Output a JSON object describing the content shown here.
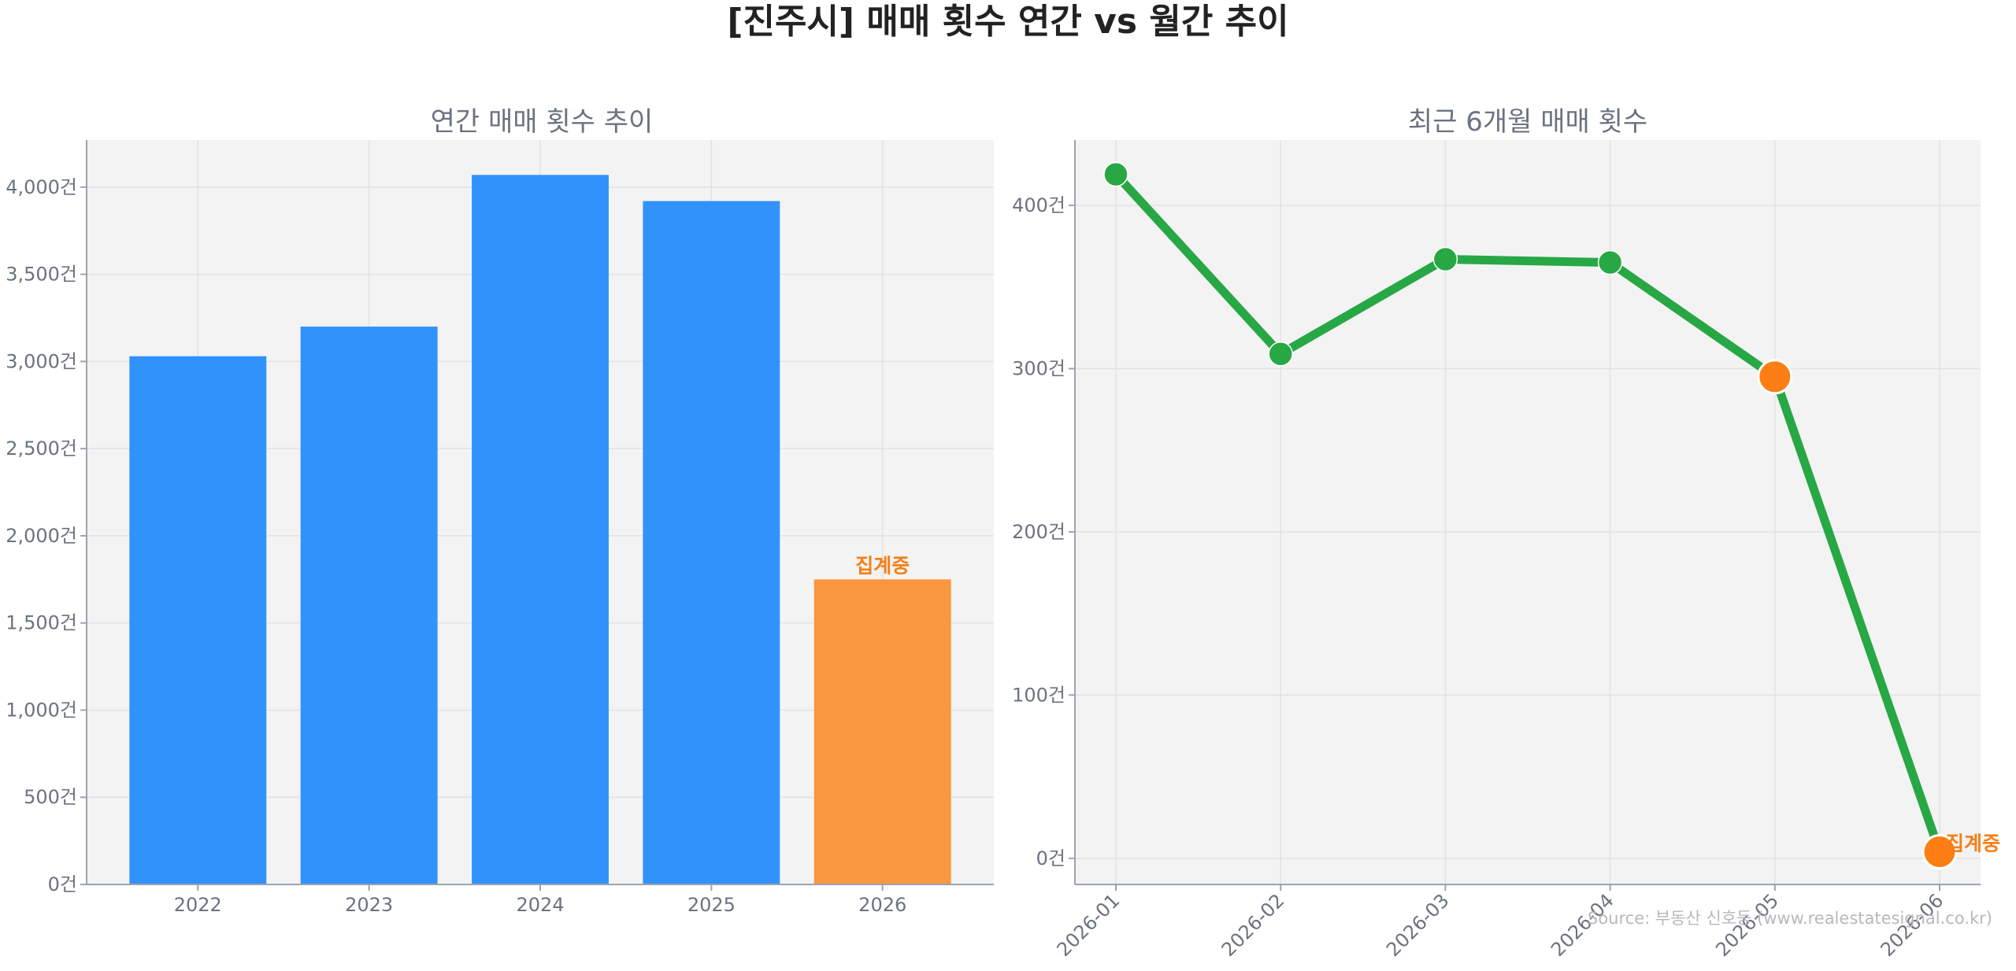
{
  "figure": {
    "title": "[진주시] 매매 횟수 연간 vs 월간 추이",
    "source": "Source: 부동산 신호등 (www.realestatesignal.co.kr)"
  },
  "colors": {
    "bar": "#3192fb",
    "bar_partial": "#f99640",
    "line": "#28a745",
    "highlight_point": "#fd7e14",
    "note_text": "#f57f17",
    "plot_bg": "#f3f3f3",
    "axis_text": "#6b7280"
  },
  "chart_data": [
    {
      "type": "bar",
      "title": "연간 매매 횟수 추이",
      "categories": [
        "2022",
        "2023",
        "2024",
        "2025",
        "2026"
      ],
      "values": [
        3030,
        3200,
        4070,
        3920,
        1750
      ],
      "ylim": [
        0,
        4270
      ],
      "yticks": [
        0,
        500,
        1000,
        1500,
        2000,
        2500,
        3000,
        3500,
        4000
      ],
      "yticklabels": [
        "0건",
        "500건",
        "1,000건",
        "1,500건",
        "2,000건",
        "2,500건",
        "3,000건",
        "3,500건",
        "4,000건"
      ],
      "highlight": {
        "category": "2026",
        "label": "집계중"
      },
      "grid": true
    },
    {
      "type": "line",
      "title": "최근 6개월 매매 횟수",
      "x": [
        "2026-01",
        "2026-02",
        "2026-03",
        "2026-04",
        "2026-05",
        "2026-06"
      ],
      "values": [
        419,
        309,
        367,
        365,
        295,
        4
      ],
      "highlight_points": [
        "2026-05",
        "2026-06"
      ],
      "highlight_label": "집계중",
      "ylim": [
        -16,
        440
      ],
      "yticks": [
        0,
        100,
        200,
        300,
        400
      ],
      "yticklabels": [
        "0건",
        "100건",
        "200건",
        "300건",
        "400건"
      ],
      "grid": true
    }
  ]
}
